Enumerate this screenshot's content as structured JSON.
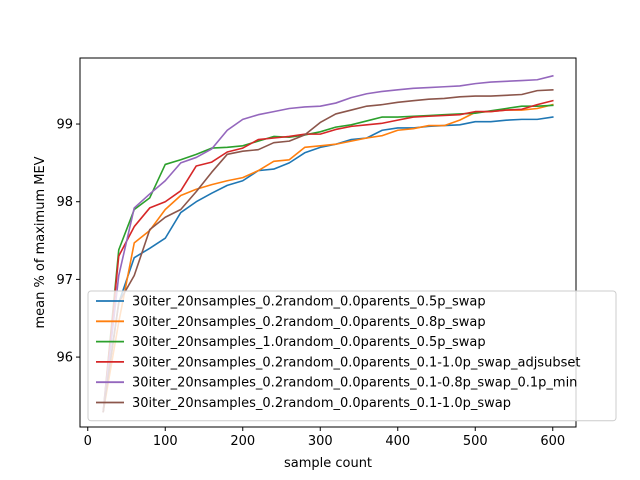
{
  "chart_data": {
    "type": "line",
    "xlabel": "sample count",
    "ylabel": "mean % of maximum MEV",
    "xlim": [
      -10,
      630
    ],
    "ylim": [
      95.1,
      99.85
    ],
    "xticks": [
      0,
      100,
      200,
      300,
      400,
      500,
      600
    ],
    "yticks": [
      96,
      97,
      98,
      99
    ],
    "grid": false,
    "legend_position": "lower-right",
    "x": [
      20,
      40,
      60,
      80,
      100,
      120,
      140,
      160,
      180,
      200,
      220,
      240,
      260,
      280,
      300,
      320,
      340,
      360,
      380,
      400,
      420,
      440,
      460,
      480,
      500,
      520,
      540,
      560,
      580,
      600
    ],
    "series": [
      {
        "name": "30iter_20nsamples_0.2random_0.0parents_0.5p_swap",
        "color": "#1f77b4",
        "values": [
          95.3,
          96.7,
          97.28,
          97.4,
          97.53,
          97.86,
          98.0,
          98.11,
          98.21,
          98.27,
          98.4,
          98.42,
          98.5,
          98.63,
          98.7,
          98.74,
          98.8,
          98.82,
          98.92,
          98.95,
          98.95,
          98.97,
          98.98,
          98.99,
          99.03,
          99.03,
          99.05,
          99.06,
          99.06,
          99.09
        ]
      },
      {
        "name": "30iter_20nsamples_0.2random_0.0parents_0.8p_swap",
        "color": "#ff7f0e",
        "values": [
          95.3,
          96.45,
          97.47,
          97.63,
          97.9,
          98.08,
          98.16,
          98.22,
          98.27,
          98.31,
          98.4,
          98.52,
          98.54,
          98.7,
          98.72,
          98.74,
          98.78,
          98.82,
          98.85,
          98.92,
          98.94,
          98.98,
          98.98,
          99.05,
          99.15,
          99.16,
          99.18,
          99.18,
          99.2,
          99.25
        ]
      },
      {
        "name": "30iter_20nsamples_1.0random_0.0parents_0.5p_swap",
        "color": "#2ca02c",
        "values": [
          95.3,
          97.38,
          97.9,
          98.05,
          98.48,
          98.54,
          98.61,
          98.69,
          98.7,
          98.72,
          98.78,
          98.84,
          98.83,
          98.86,
          98.9,
          98.96,
          98.99,
          99.04,
          99.09,
          99.09,
          99.1,
          99.11,
          99.12,
          99.13,
          99.14,
          99.17,
          99.2,
          99.23,
          99.23,
          99.24
        ]
      },
      {
        "name": "30iter_20nsamples_0.2random_0.0parents_0.1-1.0p_swap_adjsubset",
        "color": "#d62728",
        "values": [
          95.3,
          97.3,
          97.68,
          97.92,
          98.0,
          98.14,
          98.46,
          98.51,
          98.64,
          98.69,
          98.8,
          98.82,
          98.84,
          98.87,
          98.87,
          98.93,
          98.97,
          98.99,
          99.01,
          99.05,
          99.09,
          99.1,
          99.11,
          99.12,
          99.16,
          99.16,
          99.18,
          99.19,
          99.25,
          99.3
        ]
      },
      {
        "name": "30iter_20nsamples_0.2random_0.0parents_0.1-0.8p_swap_0.1p_min",
        "color": "#9467bd",
        "values": [
          95.3,
          97.05,
          97.92,
          98.1,
          98.27,
          98.5,
          98.57,
          98.68,
          98.92,
          99.06,
          99.12,
          99.16,
          99.2,
          99.22,
          99.23,
          99.27,
          99.34,
          99.39,
          99.42,
          99.44,
          99.46,
          99.47,
          99.48,
          99.49,
          99.52,
          99.54,
          99.55,
          99.56,
          99.57,
          99.62
        ]
      },
      {
        "name": "30iter_20nsamples_0.2random_0.0parents_0.1-1.0p_swap",
        "color": "#8c564b",
        "values": [
          95.3,
          96.7,
          97.05,
          97.64,
          97.8,
          97.9,
          98.13,
          98.38,
          98.61,
          98.65,
          98.67,
          98.76,
          98.78,
          98.86,
          99.02,
          99.13,
          99.18,
          99.23,
          99.25,
          99.28,
          99.3,
          99.32,
          99.33,
          99.35,
          99.36,
          99.36,
          99.37,
          99.38,
          99.43,
          99.44
        ]
      }
    ]
  }
}
